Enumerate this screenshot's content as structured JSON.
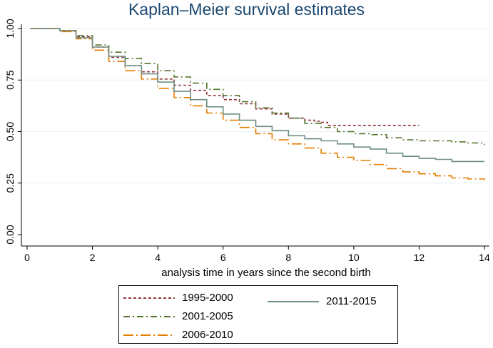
{
  "chart_data": {
    "type": "line",
    "title": "Kaplan–Meier survival estimates",
    "xlabel": "analysis time in years since the second birth",
    "ylabel": "",
    "xlim": [
      0,
      14
    ],
    "ylim": [
      0,
      1
    ],
    "xticks": [
      0,
      2,
      4,
      6,
      8,
      10,
      12,
      14
    ],
    "yticks": [
      0.0,
      0.25,
      0.5,
      0.75,
      1.0
    ],
    "ytick_labels": [
      "0.00",
      "0.25",
      "0.50",
      "0.75",
      "1.00"
    ],
    "grid": "horizontal",
    "legend_position": "bottom",
    "series": [
      {
        "name": "1995-2000",
        "color": "#90353b",
        "dash": "dash",
        "x": [
          0.1,
          1.0,
          1.5,
          2.0,
          2.5,
          3.0,
          3.5,
          4.0,
          4.5,
          5.0,
          5.5,
          6.0,
          6.5,
          7.0,
          7.5,
          8.0,
          8.5,
          8.8,
          9.0,
          9.2,
          10.0,
          11.0,
          12.0
        ],
        "y": [
          1.0,
          0.99,
          0.96,
          0.91,
          0.86,
          0.82,
          0.79,
          0.755,
          0.725,
          0.7,
          0.675,
          0.655,
          0.635,
          0.61,
          0.585,
          0.565,
          0.555,
          0.55,
          0.545,
          0.53,
          0.53,
          0.53,
          0.53
        ]
      },
      {
        "name": "2001-2005",
        "color": "#55752f",
        "dash": "dashdot",
        "x": [
          0.1,
          1.0,
          1.5,
          2.0,
          2.5,
          3.0,
          3.5,
          4.0,
          4.5,
          5.0,
          5.5,
          6.0,
          6.5,
          7.0,
          7.5,
          8.0,
          8.5,
          9.0,
          9.5,
          10.0,
          10.5,
          11.0,
          11.5,
          12.0,
          12.5,
          13.0,
          13.5,
          13.9,
          14.0
        ],
        "y": [
          1.0,
          0.99,
          0.965,
          0.92,
          0.885,
          0.855,
          0.83,
          0.795,
          0.765,
          0.735,
          0.705,
          0.675,
          0.645,
          0.615,
          0.59,
          0.565,
          0.54,
          0.52,
          0.5,
          0.49,
          0.485,
          0.47,
          0.46,
          0.455,
          0.455,
          0.45,
          0.445,
          0.445,
          0.435
        ]
      },
      {
        "name": "2006-2010",
        "color": "#e37e00",
        "dash": "longdashdot",
        "x": [
          0.1,
          1.0,
          1.5,
          2.0,
          2.5,
          3.0,
          3.5,
          4.0,
          4.5,
          5.0,
          5.5,
          6.0,
          6.5,
          7.0,
          7.5,
          8.0,
          8.5,
          9.0,
          9.5,
          10.0,
          10.5,
          11.0,
          11.5,
          12.0,
          12.5,
          13.0,
          13.5,
          14.0
        ],
        "y": [
          1.0,
          0.985,
          0.95,
          0.895,
          0.84,
          0.795,
          0.755,
          0.71,
          0.665,
          0.625,
          0.59,
          0.555,
          0.52,
          0.49,
          0.46,
          0.44,
          0.42,
          0.395,
          0.375,
          0.36,
          0.34,
          0.32,
          0.305,
          0.295,
          0.285,
          0.275,
          0.27,
          0.265
        ]
      },
      {
        "name": "2011-2015",
        "color": "#6e8e84",
        "dash": "solid",
        "x": [
          0.1,
          1.0,
          1.5,
          2.0,
          2.5,
          3.0,
          3.5,
          4.0,
          4.5,
          5.0,
          5.5,
          6.0,
          6.5,
          7.0,
          7.5,
          8.0,
          8.5,
          9.0,
          9.5,
          10.0,
          10.5,
          11.0,
          11.5,
          12.0,
          12.5,
          13.0,
          13.5,
          14.0
        ],
        "y": [
          1.0,
          0.99,
          0.955,
          0.91,
          0.865,
          0.82,
          0.78,
          0.74,
          0.695,
          0.655,
          0.62,
          0.585,
          0.555,
          0.525,
          0.505,
          0.48,
          0.465,
          0.455,
          0.44,
          0.425,
          0.415,
          0.395,
          0.38,
          0.37,
          0.365,
          0.355,
          0.355,
          0.355
        ]
      }
    ]
  }
}
